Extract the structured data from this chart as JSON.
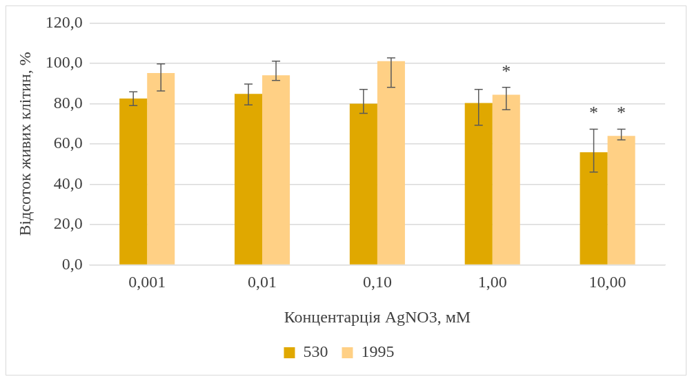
{
  "chart_data": {
    "type": "bar",
    "xlabel": "Концентарція AgNO3, мМ",
    "ylabel": "Відсоток живих клітин, %",
    "categories": [
      "0,001",
      "0,01",
      "0,10",
      "1,00",
      "10,00"
    ],
    "series": [
      {
        "name": "530",
        "color": "#e0a800",
        "values": [
          82.5,
          84.8,
          80.0,
          80.3,
          55.9
        ],
        "errors": [
          [
            79.0,
            85.9
          ],
          [
            79.4,
            89.7
          ],
          [
            75.2,
            87.1
          ],
          [
            69.3,
            87.1
          ],
          [
            46.0,
            67.3
          ]
        ],
        "value_labels": [
          null,
          null,
          null,
          null,
          "*"
        ]
      },
      {
        "name": "1995",
        "color": "#ffd085",
        "values": [
          95.2,
          94.1,
          101.1,
          84.4,
          64.0
        ],
        "errors": [
          [
            86.3,
            99.7
          ],
          [
            91.5,
            101.1
          ],
          [
            88.1,
            102.7
          ],
          [
            77.0,
            88.1
          ],
          [
            62.0,
            67.3
          ]
        ],
        "value_labels": [
          null,
          null,
          null,
          "*",
          "*"
        ]
      }
    ],
    "ylim": [
      0,
      120
    ],
    "yticks": [
      {
        "value": 0,
        "label": "0,0"
      },
      {
        "value": 20,
        "label": "20,0"
      },
      {
        "value": 40,
        "label": "40,0"
      },
      {
        "value": 60,
        "label": "60,0"
      },
      {
        "value": 80,
        "label": "80,0"
      },
      {
        "value": 100,
        "label": "100,0"
      },
      {
        "value": 120,
        "label": "120,0"
      }
    ],
    "grid": "y",
    "legend": "bottom"
  }
}
